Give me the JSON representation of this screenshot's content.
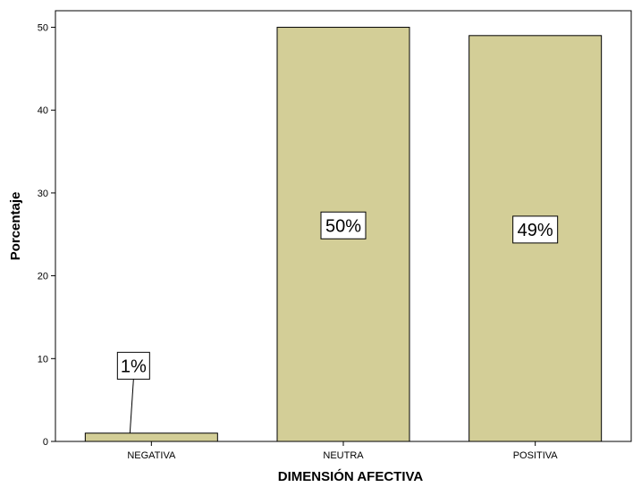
{
  "chart_data": {
    "type": "bar",
    "categories": [
      "NEGATIVA",
      "NEUTRA",
      "POSITIVA"
    ],
    "values": [
      1,
      50,
      49
    ],
    "data_labels": [
      "1%",
      "50%",
      "49%"
    ],
    "xlabel": "DIMENSIÓN AFECTIVA",
    "ylabel": "Porcentaje",
    "ylim": [
      0,
      52
    ],
    "yticks": [
      "0",
      "10",
      "20",
      "30",
      "40",
      "50"
    ],
    "grid": false,
    "colors": {
      "bar_fill": "#d3ce97",
      "bar_stroke": "#000000",
      "background": "#ffffff"
    }
  }
}
